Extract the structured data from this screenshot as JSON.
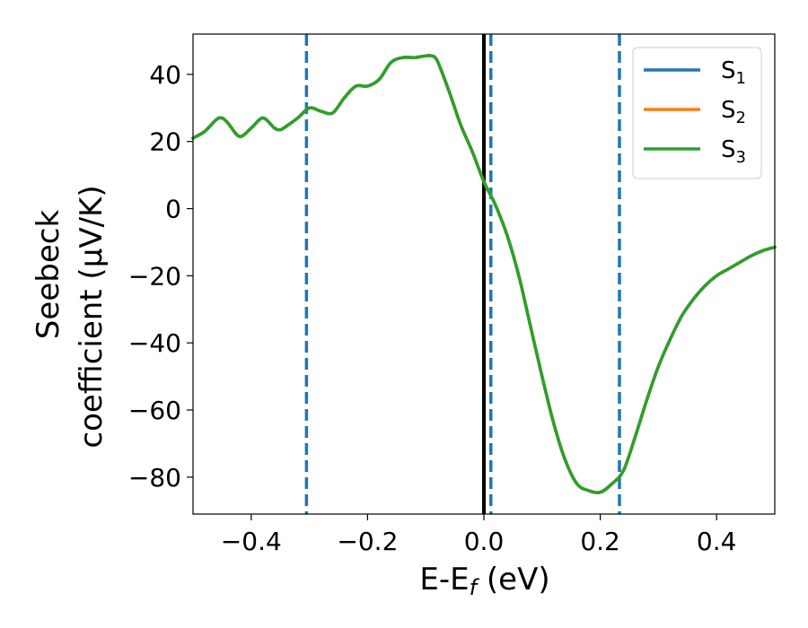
{
  "chart_data": {
    "type": "line",
    "xlabel": {
      "main": "E-E",
      "sub": "f",
      "suffix": " (eV)"
    },
    "ylabel": {
      "line1": "Seebeck",
      "line2": "coefficient  (μV/K)"
    },
    "xlim": [
      -0.5,
      0.5
    ],
    "ylim": [
      -91,
      52
    ],
    "xticks": [
      -0.4,
      -0.2,
      0.0,
      0.2,
      0.4
    ],
    "xtick_labels": [
      "−0.4",
      "−0.2",
      "0.0",
      "0.2",
      "0.4"
    ],
    "yticks": [
      40,
      20,
      0,
      -20,
      -40,
      -60,
      -80
    ],
    "ytick_labels": [
      "40",
      "20",
      "0",
      "−20",
      "−40",
      "−60",
      "−80"
    ],
    "grid": false,
    "legend_position": "top-right",
    "vertical_lines": [
      {
        "x": -0.305,
        "style": "dashed",
        "color": "#1f77b4"
      },
      {
        "x": 0.0,
        "style": "solid",
        "color": "#000000"
      },
      {
        "x": 0.012,
        "style": "dashed",
        "color": "#1f77b4"
      },
      {
        "x": 0.233,
        "style": "dashed",
        "color": "#1f77b4"
      }
    ],
    "series": [
      {
        "name": "S",
        "subscript": "1",
        "color": "#1f77b4"
      },
      {
        "name": "S",
        "subscript": "2",
        "color": "#ff7f0e"
      },
      {
        "name": "S",
        "subscript": "3",
        "color": "#2ca02c"
      }
    ],
    "x": [
      -0.5,
      -0.48,
      -0.46,
      -0.45,
      -0.44,
      -0.42,
      -0.4,
      -0.38,
      -0.36,
      -0.35,
      -0.34,
      -0.32,
      -0.3,
      -0.28,
      -0.26,
      -0.24,
      -0.22,
      -0.2,
      -0.18,
      -0.16,
      -0.14,
      -0.12,
      -0.1,
      -0.09,
      -0.08,
      -0.06,
      -0.04,
      -0.02,
      0.0,
      0.02,
      0.04,
      0.06,
      0.08,
      0.1,
      0.12,
      0.14,
      0.16,
      0.18,
      0.2,
      0.22,
      0.24,
      0.26,
      0.28,
      0.3,
      0.32,
      0.34,
      0.36,
      0.38,
      0.4,
      0.42,
      0.44,
      0.46,
      0.48,
      0.5
    ],
    "y": [
      21,
      23,
      26.5,
      27,
      25.5,
      21.5,
      24,
      27,
      24,
      23.5,
      24.5,
      27,
      30,
      29,
      28.5,
      33,
      36.5,
      36.5,
      38.5,
      43.5,
      45,
      45,
      45.5,
      45.5,
      44,
      35,
      25,
      17,
      8,
      1,
      -8,
      -20,
      -35,
      -50,
      -64,
      -75,
      -82,
      -84,
      -84.5,
      -82,
      -78,
      -68,
      -57,
      -47,
      -39,
      -32,
      -27,
      -23,
      -20,
      -18,
      -16,
      -14,
      -12.5,
      -11.5
    ]
  }
}
